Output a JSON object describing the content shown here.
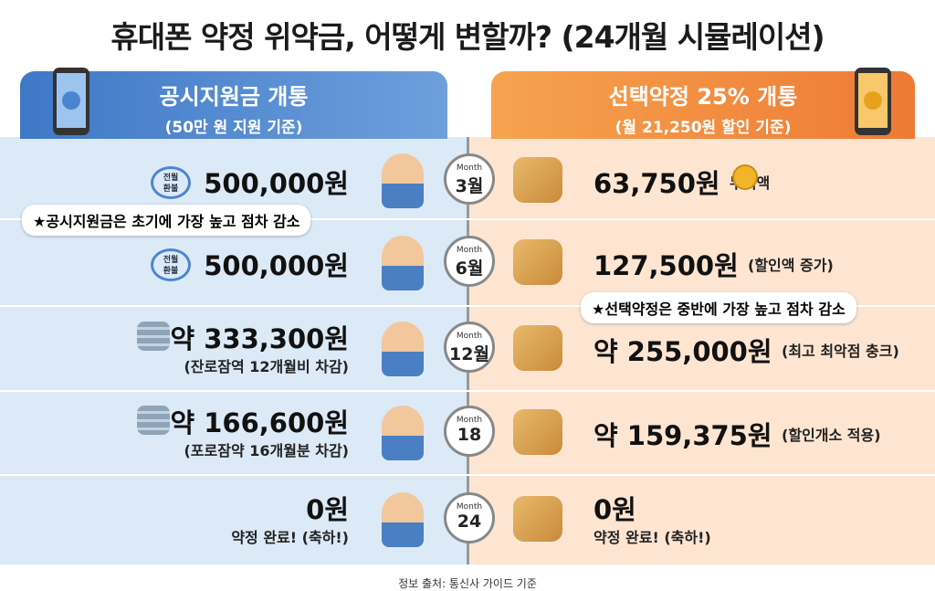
{
  "title": "휴대폰 약정 위약금, 어떻게 변할까? (24개월 시뮬레이션)",
  "left_header": {
    "title": "공시지원금 개통",
    "subtitle": "(50만 원 지원 기준)"
  },
  "right_header": {
    "title": "선택약정 25% 개통",
    "subtitle": "(월 21,250원 할인 기준)"
  },
  "rows": [
    {
      "month_caption": "Month",
      "month": "3월",
      "left": {
        "icon_text": [
          "전월",
          "환불"
        ],
        "amount": "500,000원"
      },
      "right": {
        "amount": "63,750원",
        "note": "누적액"
      }
    },
    {
      "month_caption": "Month",
      "month": "6월",
      "left": {
        "icon_text": [
          "전월",
          "환불"
        ],
        "amount": "500,000원"
      },
      "right": {
        "amount": "127,500원",
        "note": "(할인액 증가)"
      }
    },
    {
      "month_caption": "Month",
      "month": "12월",
      "left": {
        "amount": "약 333,300원",
        "note": "(잔로잠역 12개월비 차감)"
      },
      "right": {
        "amount": "약 255,000원",
        "note": "(최고 최악점 충크)"
      }
    },
    {
      "month_caption": "Month",
      "month": "18",
      "left": {
        "amount": "약 166,600원",
        "note": "(포로잠약 16개월분 차감)"
      },
      "right": {
        "amount": "약 159,375원",
        "note": "(할인개소 적용)"
      }
    },
    {
      "month_caption": "Month",
      "month": "24",
      "left": {
        "amount": "0원",
        "note": "약정 완료! (축하!)"
      },
      "right": {
        "amount": "0원",
        "note": "약정 완료! (축하!)"
      }
    }
  ],
  "callouts": [
    "★공시지원금은 초기에 가장 높고 점차 감소",
    "★선택약정은 중반에 가장 높고 점차 감소"
  ],
  "footer": "정보 출처: 통신사 가이드 기준"
}
